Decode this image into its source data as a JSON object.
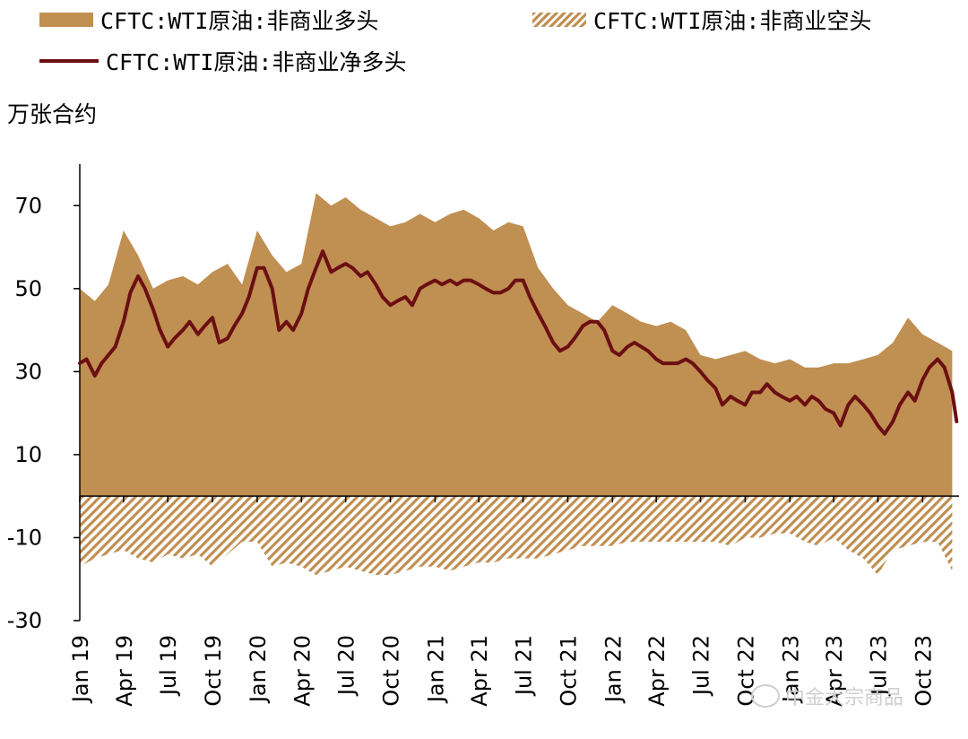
{
  "chart_data": {
    "type": "area",
    "ylabel": "万张合约",
    "ylim": [
      -30,
      80
    ],
    "yticks": [
      70,
      50,
      30,
      10,
      -10,
      -30
    ],
    "xlim": [
      "2019-01-01",
      "2023-12-15"
    ],
    "xticks": [
      "2019-01-01",
      "2019-04-01",
      "2019-07-01",
      "2019-10-01",
      "2020-01-01",
      "2020-04-01",
      "2020-07-01",
      "2020-10-01",
      "2021-01-01",
      "2021-04-01",
      "2021-07-01",
      "2021-10-01",
      "2022-01-01",
      "2022-04-01",
      "2022-07-01",
      "2022-10-01",
      "2023-01-01",
      "2023-04-01",
      "2023-07-01",
      "2023-10-01"
    ],
    "xtick_labels": [
      "Jan 19",
      "Apr 19",
      "Jul 19",
      "Oct 19",
      "Jan 20",
      "Apr 20",
      "Jul 20",
      "Oct 20",
      "Jan 21",
      "Apr 21",
      "Jul 21",
      "Oct 21",
      "Jan 22",
      "Apr 22",
      "Jul 22",
      "Oct 22",
      "Jan 23",
      "Apr 23",
      "Jul 23",
      "Oct 23"
    ],
    "legend_position": "top",
    "series": [
      {
        "name": "CFTC:WTI原油:非商业多头",
        "color": "#C08F52",
        "style": "area",
        "x": [
          "2019-01-01",
          "2019-02-01",
          "2019-03-01",
          "2019-04-01",
          "2019-05-01",
          "2019-06-01",
          "2019-07-01",
          "2019-08-01",
          "2019-09-01",
          "2019-10-01",
          "2019-11-01",
          "2019-12-01",
          "2020-01-01",
          "2020-02-01",
          "2020-03-01",
          "2020-04-01",
          "2020-05-01",
          "2020-06-01",
          "2020-07-01",
          "2020-08-01",
          "2020-09-01",
          "2020-10-01",
          "2020-11-01",
          "2020-12-01",
          "2021-01-01",
          "2021-02-01",
          "2021-03-01",
          "2021-04-01",
          "2021-05-01",
          "2021-06-01",
          "2021-07-01",
          "2021-08-01",
          "2021-09-01",
          "2021-10-01",
          "2021-11-01",
          "2021-12-01",
          "2022-01-01",
          "2022-02-01",
          "2022-03-01",
          "2022-04-01",
          "2022-05-01",
          "2022-06-01",
          "2022-07-01",
          "2022-08-01",
          "2022-09-01",
          "2022-10-01",
          "2022-11-01",
          "2022-12-01",
          "2023-01-01",
          "2023-02-01",
          "2023-03-01",
          "2023-04-01",
          "2023-05-01",
          "2023-06-01",
          "2023-07-01",
          "2023-08-01",
          "2023-09-01",
          "2023-10-01",
          "2023-11-01",
          "2023-12-01"
        ],
        "values": [
          50,
          47,
          51,
          64,
          58,
          50,
          52,
          53,
          51,
          54,
          56,
          51,
          64,
          58,
          54,
          56,
          73,
          70,
          72,
          69,
          67,
          65,
          66,
          68,
          66,
          68,
          69,
          67,
          64,
          66,
          65,
          55,
          50,
          46,
          44,
          42,
          46,
          44,
          42,
          41,
          42,
          40,
          34,
          33,
          34,
          35,
          33,
          32,
          33,
          31,
          31,
          32,
          32,
          33,
          34,
          37,
          43,
          39,
          37,
          35
        ]
      },
      {
        "name": "CFTC:WTI原油:非商业空头",
        "color": "#C08F52",
        "style": "hatched-area",
        "x": [
          "2019-01-01",
          "2019-02-01",
          "2019-03-01",
          "2019-04-01",
          "2019-05-01",
          "2019-06-01",
          "2019-07-01",
          "2019-08-01",
          "2019-09-01",
          "2019-10-01",
          "2019-11-01",
          "2019-12-01",
          "2020-01-01",
          "2020-02-01",
          "2020-03-01",
          "2020-04-01",
          "2020-05-01",
          "2020-06-01",
          "2020-07-01",
          "2020-08-01",
          "2020-09-01",
          "2020-10-01",
          "2020-11-01",
          "2020-12-01",
          "2021-01-01",
          "2021-02-01",
          "2021-03-01",
          "2021-04-01",
          "2021-05-01",
          "2021-06-01",
          "2021-07-01",
          "2021-08-01",
          "2021-09-01",
          "2021-10-01",
          "2021-11-01",
          "2021-12-01",
          "2022-01-01",
          "2022-02-01",
          "2022-03-01",
          "2022-04-01",
          "2022-05-01",
          "2022-06-01",
          "2022-07-01",
          "2022-08-01",
          "2022-09-01",
          "2022-10-01",
          "2022-11-01",
          "2022-12-01",
          "2023-01-01",
          "2023-02-01",
          "2023-03-01",
          "2023-04-01",
          "2023-05-01",
          "2023-06-01",
          "2023-07-01",
          "2023-08-01",
          "2023-09-01",
          "2023-10-01",
          "2023-11-01",
          "2023-12-01"
        ],
        "values": [
          -17,
          -15,
          -14,
          -13,
          -15,
          -16,
          -14,
          -15,
          -14,
          -17,
          -14,
          -11,
          -11,
          -17,
          -16,
          -17,
          -19,
          -18,
          -17,
          -18,
          -19,
          -19,
          -18,
          -17,
          -17,
          -18,
          -17,
          -16,
          -16,
          -15,
          -15,
          -15,
          -14,
          -13,
          -12,
          -12,
          -12,
          -11,
          -11,
          -11,
          -11,
          -11,
          -11,
          -11,
          -12,
          -10,
          -10,
          -9,
          -9,
          -11,
          -12,
          -10,
          -13,
          -15,
          -19,
          -13,
          -12,
          -11,
          -11,
          -18
        ]
      },
      {
        "name": "CFTC:WTI原油:非商业净多头",
        "color": "#6B0F12",
        "style": "line",
        "x": [
          "2019-01-01",
          "2019-01-15",
          "2019-02-01",
          "2019-02-15",
          "2019-03-01",
          "2019-03-15",
          "2019-04-01",
          "2019-04-15",
          "2019-05-01",
          "2019-05-15",
          "2019-06-01",
          "2019-06-15",
          "2019-07-01",
          "2019-07-15",
          "2019-08-01",
          "2019-08-15",
          "2019-09-01",
          "2019-09-15",
          "2019-10-01",
          "2019-10-15",
          "2019-11-01",
          "2019-11-15",
          "2019-12-01",
          "2019-12-15",
          "2020-01-01",
          "2020-01-15",
          "2020-02-01",
          "2020-02-15",
          "2020-03-01",
          "2020-03-15",
          "2020-04-01",
          "2020-04-15",
          "2020-05-01",
          "2020-05-15",
          "2020-06-01",
          "2020-06-15",
          "2020-07-01",
          "2020-07-15",
          "2020-08-01",
          "2020-08-15",
          "2020-09-01",
          "2020-09-15",
          "2020-10-01",
          "2020-10-15",
          "2020-11-01",
          "2020-11-15",
          "2020-12-01",
          "2020-12-15",
          "2021-01-01",
          "2021-01-15",
          "2021-02-01",
          "2021-02-15",
          "2021-03-01",
          "2021-03-15",
          "2021-04-01",
          "2021-04-15",
          "2021-05-01",
          "2021-05-15",
          "2021-06-01",
          "2021-06-15",
          "2021-07-01",
          "2021-07-15",
          "2021-08-01",
          "2021-08-15",
          "2021-09-01",
          "2021-09-15",
          "2021-10-01",
          "2021-10-15",
          "2021-11-01",
          "2021-11-15",
          "2021-12-01",
          "2021-12-15",
          "2022-01-01",
          "2022-01-15",
          "2022-02-01",
          "2022-02-15",
          "2022-03-01",
          "2022-03-15",
          "2022-04-01",
          "2022-04-15",
          "2022-05-01",
          "2022-05-15",
          "2022-06-01",
          "2022-06-15",
          "2022-07-01",
          "2022-07-15",
          "2022-08-01",
          "2022-08-15",
          "2022-09-01",
          "2022-09-15",
          "2022-10-01",
          "2022-10-15",
          "2022-11-01",
          "2022-11-15",
          "2022-12-01",
          "2022-12-15",
          "2023-01-01",
          "2023-01-15",
          "2023-02-01",
          "2023-02-15",
          "2023-03-01",
          "2023-03-15",
          "2023-04-01",
          "2023-04-15",
          "2023-05-01",
          "2023-05-15",
          "2023-06-01",
          "2023-06-15",
          "2023-07-01",
          "2023-07-15",
          "2023-08-01",
          "2023-08-15",
          "2023-09-01",
          "2023-09-15",
          "2023-10-01",
          "2023-10-15",
          "2023-11-01",
          "2023-11-15",
          "2023-12-01",
          "2023-12-10"
        ],
        "values": [
          32,
          33,
          29,
          32,
          34,
          36,
          42,
          49,
          53,
          50,
          45,
          40,
          36,
          38,
          40,
          42,
          39,
          41,
          43,
          37,
          38,
          41,
          44,
          48,
          55,
          55,
          50,
          40,
          42,
          40,
          44,
          50,
          55,
          59,
          54,
          55,
          56,
          55,
          53,
          54,
          51,
          48,
          46,
          47,
          48,
          46,
          50,
          51,
          52,
          51,
          52,
          51,
          52,
          52,
          51,
          50,
          49,
          49,
          50,
          52,
          52,
          48,
          44,
          41,
          37,
          35,
          36,
          38,
          41,
          42,
          42,
          40,
          35,
          34,
          36,
          37,
          36,
          35,
          33,
          32,
          32,
          32,
          33,
          32,
          30,
          28,
          26,
          22,
          24,
          23,
          22,
          25,
          25,
          27,
          25,
          24,
          23,
          24,
          22,
          24,
          23,
          21,
          20,
          17,
          22,
          24,
          22,
          20,
          17,
          15,
          18,
          22,
          25,
          23,
          28,
          31,
          33,
          31,
          25,
          18
        ]
      }
    ]
  }
}
